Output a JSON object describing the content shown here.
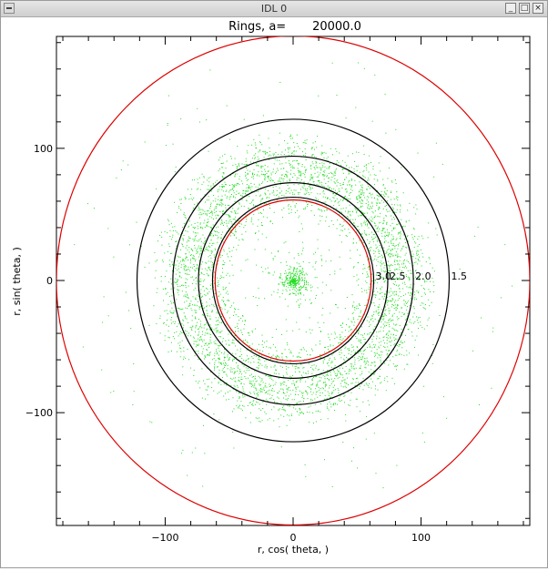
{
  "window": {
    "title": "IDL 0",
    "buttons": [
      "_",
      "□",
      "×"
    ]
  },
  "chart_data": {
    "type": "scatter",
    "title": "Rings, a=       20000.0",
    "xlabel": "r, cos( theta, )",
    "ylabel": "r, sin( theta, )",
    "xlim": [
      -185,
      185
    ],
    "ylim": [
      -185,
      185
    ],
    "xticks": [
      -100,
      0,
      100
    ],
    "yticks": [
      -100,
      0,
      100
    ],
    "xtick_labels": [
      "−100",
      "0",
      "100"
    ],
    "ytick_labels": [
      "−100",
      "0",
      "100"
    ],
    "grid": false,
    "legend": "none",
    "series": [
      {
        "type": "points",
        "color": "#22dd22",
        "ring_radius_range": [
          45,
          115
        ],
        "core_radius": 12
      }
    ],
    "rings": [
      {
        "radius": 122,
        "color": "#000000",
        "label": "1.5"
      },
      {
        "radius": 94,
        "color": "#000000",
        "label": "2.0"
      },
      {
        "radius": 74,
        "color": "#000000",
        "label": "2.5"
      },
      {
        "radius": 63,
        "color": "#000000",
        "label": "3.0"
      },
      {
        "radius": 61,
        "color": "#dd0000",
        "label": ""
      },
      {
        "radius": 185,
        "color": "#dd0000",
        "label": ""
      }
    ]
  }
}
